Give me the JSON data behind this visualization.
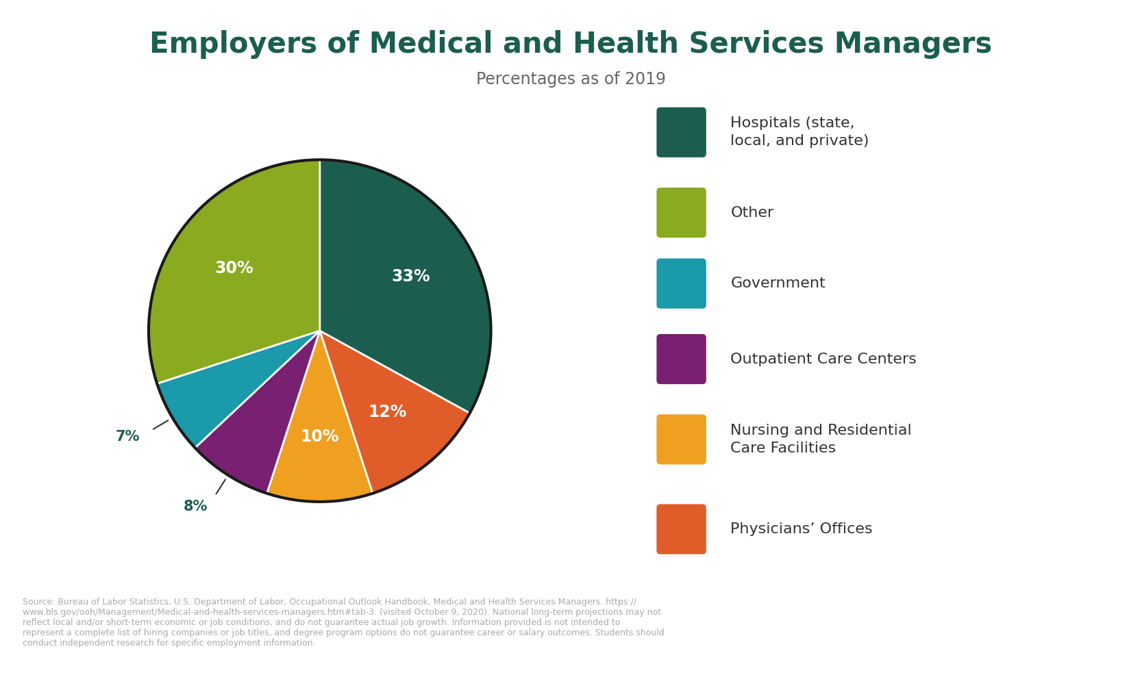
{
  "title": "Employers of Medical and Health Services Managers",
  "subtitle": "Percentages as of 2019",
  "slices": [
    33,
    12,
    10,
    8,
    7,
    30
  ],
  "labels": [
    "33%",
    "12%",
    "10%",
    "8%",
    "7%",
    "30%"
  ],
  "colors": [
    "#1b5e50",
    "#e05c28",
    "#f0a020",
    "#7a2072",
    "#1a9aaa",
    "#8aaa20"
  ],
  "inside_label": [
    true,
    true,
    true,
    false,
    false,
    true
  ],
  "legend_labels": [
    "Hospitals (state,\nlocal, and private)",
    "Other",
    "Government",
    "Outpatient Care Centers",
    "Nursing and Residential\nCare Facilities",
    "Physicians’ Offices"
  ],
  "legend_colors": [
    "#1b5e50",
    "#8aaa20",
    "#1a9aaa",
    "#7a2072",
    "#f0a020",
    "#e05c28"
  ],
  "title_color": "#1b5e50",
  "subtitle_color": "#666666",
  "source_text": "Source: Bureau of Labor Statistics, U.S. Department of Labor, Occupational Outlook Handbook, Medical and Health Services Managers. https://\nwww.bls.gov/ooh/Management/Medical-and-health-services-managers.htm#tab-3. (visited October 9, 2020). National long-term projections may not\nreflect local and/or short-term economic or job conditions, and do not guarantee actual job growth. Information provided is not intended to\nrepresent a complete list of hiring companies or job titles, and degree program options do not guarantee career or salary outcomes. Students should\nconduct independent research for specific employment information.",
  "background_color": "#ffffff",
  "pie_edge_color": "#ffffff",
  "pie_edge_width": 2.0,
  "pie_outer_edge_color": "#1a1a1a",
  "pie_outer_edge_width": 3.0,
  "startangle": 90
}
